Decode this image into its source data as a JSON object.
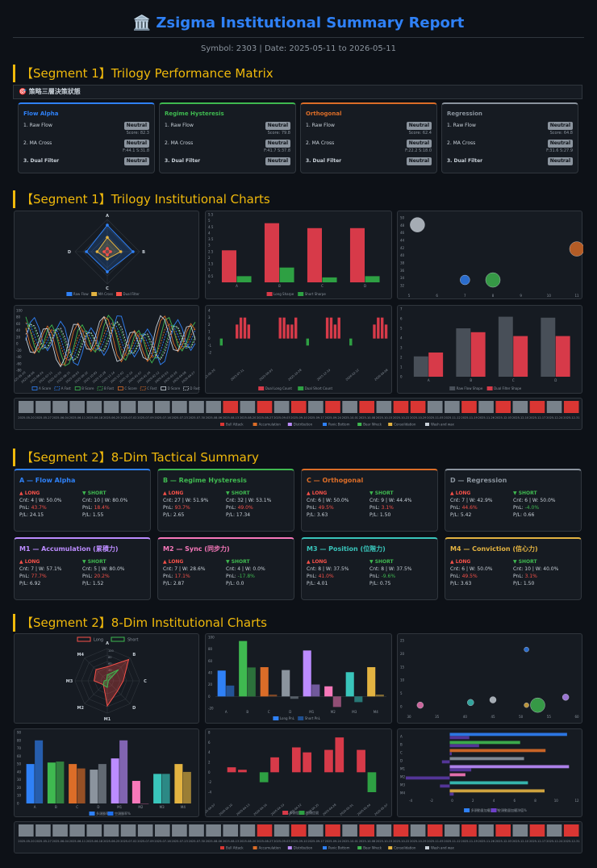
{
  "header": {
    "icon": "🏛️",
    "title": "Zsigma Institutional Summary Report",
    "subtitle": "Symbol: 2303 | Date: 2025-05-11 to 2026-05-11"
  },
  "sections": {
    "s1": "【Segment 1】Trilogy Performance Matrix",
    "s2": "【Segment 1】Trilogy Institutional Charts",
    "s3": "【Segment 2】8-Dim Tactical Summary",
    "s4": "【Segment 2】8-Dim Institutional Charts"
  },
  "matrix_bar": "🎯 策略三層決策狀態",
  "colors": {
    "blue": "#2f81f7",
    "green": "#3fb950",
    "orange": "#db6d28",
    "gray": "#8b949e",
    "red": "#f85149",
    "purple": "#bc8cff",
    "teal": "#39c5bb",
    "yellow": "#e3b341",
    "crimson": "#d73a49"
  },
  "trilogy": [
    {
      "name": "Flow Alpha",
      "color": "#2f81f7",
      "r1": "1. Raw Flow",
      "v1": "Neutral",
      "n1": "Score: 82.3",
      "r2": "2. MA Cross",
      "v2": "Neutral",
      "n2": "F:44.1 S:31.8",
      "r3": "3. Dual Filter",
      "v3": "Neutral"
    },
    {
      "name": "Regime Hysteresis",
      "color": "#3fb950",
      "r1": "1. Raw Flow",
      "v1": "Neutral",
      "n1": "Score: 79.8",
      "r2": "2. MA Cross",
      "v2": "Neutral",
      "n2": "F:41.7 S:37.8",
      "r3": "3. Dual Filter",
      "v3": "Neutral"
    },
    {
      "name": "Orthogonal",
      "color": "#db6d28",
      "r1": "1. Raw Flow",
      "v1": "Neutral",
      "n1": "Score: 62.4",
      "r2": "2. MA Cross",
      "v2": "Neutral",
      "n2": "F:22.2 S:18.0",
      "r3": "3. Dual Filter",
      "v3": "Neutral"
    },
    {
      "name": "Regression",
      "color": "#8b949e",
      "r1": "1. Raw Flow",
      "v1": "Neutral",
      "n1": "Score: 64.8",
      "r2": "2. MA Cross",
      "v2": "Neutral",
      "n2": "F:31.6 S:27.9",
      "r3": "3. Dual Filter",
      "v3": "Neutral"
    }
  ],
  "dims": [
    {
      "name": "A — Flow Alpha",
      "color": "#2f81f7",
      "long_label": "▲ LONG",
      "short_label": "▼ SHORT",
      "l_cnt": "Cnt: 4 | W: 50.0%",
      "l_pnl_label": "PnL:",
      "l_pnl": "43.7%",
      "l_pf": "P/L: 24.15",
      "s_cnt": "Cnt: 10 | W: 80.0%",
      "s_pnl_label": "PnL:",
      "s_pnl": "18.4%",
      "s_pf": "P/L: 1.55",
      "l_neg": false,
      "s_neg": false
    },
    {
      "name": "B — Regime Hysteresis",
      "color": "#3fb950",
      "long_label": "▲ LONG",
      "short_label": "▼ SHORT",
      "l_cnt": "Cnt: 27 | W: 51.9%",
      "l_pnl_label": "PnL:",
      "l_pnl": "93.7%",
      "l_pf": "P/L: 2.65",
      "s_cnt": "Cnt: 32 | W: 53.1%",
      "s_pnl_label": "PnL:",
      "s_pnl": "49.0%",
      "s_pf": "P/L: 17.34",
      "l_neg": false,
      "s_neg": false
    },
    {
      "name": "C — Orthogonal",
      "color": "#db6d28",
      "long_label": "▲ LONG",
      "short_label": "▼ SHORT",
      "l_cnt": "Cnt: 6 | W: 50.0%",
      "l_pnl_label": "PnL:",
      "l_pnl": "49.5%",
      "l_pf": "P/L: 3.63",
      "s_cnt": "Cnt: 9 | W: 44.4%",
      "s_pnl_label": "PnL:",
      "s_pnl": "3.1%",
      "s_pf": "P/L: 1.50",
      "l_neg": false,
      "s_neg": false
    },
    {
      "name": "D — Regression",
      "color": "#8b949e",
      "long_label": "▲ LONG",
      "short_label": "▼ SHORT",
      "l_cnt": "Cnt: 7 | W: 42.9%",
      "l_pnl_label": "PnL:",
      "l_pnl": "44.6%",
      "l_pf": "P/L: 5.42",
      "s_cnt": "Cnt: 6 | W: 50.0%",
      "s_pnl_label": "PnL:",
      "s_pnl": "-4.0%",
      "s_pf": "P/L: 0.66",
      "l_neg": false,
      "s_neg": true
    },
    {
      "name": "M1 — Accumulation (累積力)",
      "color": "#bc8cff",
      "long_label": "▲ LONG",
      "short_label": "▼ SHORT",
      "l_cnt": "Cnt: 7 | W: 57.1%",
      "l_pnl_label": "PnL:",
      "l_pnl": "77.7%",
      "l_pf": "P/L: 6.92",
      "s_cnt": "Cnt: 5 | W: 80.0%",
      "s_pnl_label": "PnL:",
      "s_pnl": "20.2%",
      "s_pf": "P/L: 1.52",
      "l_neg": false,
      "s_neg": false
    },
    {
      "name": "M2 — Sync (同步力)",
      "color": "#f778ba",
      "long_label": "▲ LONG",
      "short_label": "▼ SHORT",
      "l_cnt": "Cnt: 7 | W: 28.6%",
      "l_pnl_label": "PnL:",
      "l_pnl": "17.1%",
      "l_pf": "P/L: 2.87",
      "s_cnt": "Cnt: 4 | W: 0.0%",
      "s_pnl_label": "PnL:",
      "s_pnl": "-17.8%",
      "s_pf": "P/L: 0.0",
      "l_neg": false,
      "s_neg": true
    },
    {
      "name": "M3 — Position (位階力)",
      "color": "#39c5bb",
      "long_label": "▲ LONG",
      "short_label": "▼ SHORT",
      "l_cnt": "Cnt: 8 | W: 37.5%",
      "l_pnl_label": "PnL:",
      "l_pnl": "41.0%",
      "l_pf": "P/L: 4.01",
      "s_cnt": "Cnt: 8 | W: 37.5%",
      "s_pnl_label": "PnL:",
      "s_pnl": "-9.6%",
      "s_pf": "P/L: 0.75",
      "l_neg": false,
      "s_neg": true
    },
    {
      "name": "M4 — Conviction (信心力)",
      "color": "#e3b341",
      "long_label": "▲ LONG",
      "short_label": "▼ SHORT",
      "l_cnt": "Cnt: 6 | W: 50.0%",
      "l_pnl_label": "PnL:",
      "l_pnl": "49.5%",
      "l_pf": "P/L: 3.63",
      "s_cnt": "Cnt: 10 | W: 40.0%",
      "s_pnl_label": "PnL:",
      "s_pnl": "3.1%",
      "s_pf": "P/L: 1.50",
      "l_neg": false,
      "s_neg": false
    }
  ],
  "chart_data": [
    {
      "type": "radar",
      "axes": [
        "A",
        "B",
        "C",
        "D"
      ],
      "series": [
        {
          "name": "Raw Flow",
          "values": [
            82.3,
            79.8,
            62.4,
            64.8
          ],
          "color": "#2f81f7"
        },
        {
          "name": "MA Cross",
          "values": [
            44.1,
            41.7,
            22.2,
            31.6
          ],
          "color": "#e3b341"
        },
        {
          "name": "Dual Filter",
          "values": [
            10,
            10,
            10,
            10
          ],
          "color": "#f85149"
        }
      ]
    },
    {
      "type": "bar",
      "categories": [
        "A",
        "B",
        "C",
        "D"
      ],
      "ylim": [
        0,
        5.5
      ],
      "yticks": [
        "0",
        "0.5",
        "1",
        "1.5",
        "2",
        "2.5",
        "3",
        "3.5",
        "4",
        "4.5",
        "5",
        "5.5"
      ],
      "series": [
        {
          "name": "Long Sharpe",
          "values": [
            2.6,
            4.8,
            4.4,
            4.4
          ],
          "color": "#d73a49"
        },
        {
          "name": "Short Sharpe",
          "values": [
            0.5,
            1.2,
            0.4,
            0.5
          ],
          "color": "#2ea043"
        }
      ]
    },
    {
      "type": "scatter",
      "ylim": [
        30,
        52
      ],
      "yticks": [
        "50",
        "48",
        "46",
        "44",
        "42",
        "40",
        "38",
        "36",
        "34",
        "32"
      ],
      "xticks": [
        "5",
        "6",
        "7",
        "8",
        "9",
        "10",
        "11"
      ],
      "points": [
        {
          "x": 5.3,
          "y": 49.5,
          "r": 9,
          "color": "#c9d1d9"
        },
        {
          "x": 7.0,
          "y": 33.5,
          "r": 6,
          "color": "#2f81f7"
        },
        {
          "x": 8.0,
          "y": 33.5,
          "r": 9,
          "color": "#3fb950"
        },
        {
          "x": 11.0,
          "y": 42.5,
          "r": 9,
          "color": "#db6d28"
        }
      ]
    },
    {
      "type": "line",
      "ylim": [
        -80,
        100
      ],
      "yticks": [
        "100",
        "80",
        "60",
        "40",
        "20",
        "0",
        "-20",
        "-40",
        "-60",
        "-80"
      ],
      "series": [
        {
          "name": "A Score",
          "color": "#2f81f7",
          "dashed": false
        },
        {
          "name": "A Fast",
          "color": "#2f81f7",
          "dashed": true
        },
        {
          "name": "B Score",
          "color": "#3fb950",
          "dashed": false
        },
        {
          "name": "B Fast",
          "color": "#3fb950",
          "dashed": true
        },
        {
          "name": "C Score",
          "color": "#db6d28",
          "dashed": false
        },
        {
          "name": "C Fast",
          "color": "#db6d28",
          "dashed": true
        },
        {
          "name": "D Score",
          "color": "#c9d1d9",
          "dashed": false
        },
        {
          "name": "D Fast",
          "color": "#c9d1d9",
          "dashed": true
        }
      ]
    },
    {
      "type": "bar",
      "ylim": [
        -2,
        4
      ],
      "yticks": [
        "4",
        "3",
        "2",
        "1",
        "0",
        "-1",
        "-2"
      ],
      "series": [
        {
          "name": "Dual Long Count",
          "values": [
            0,
            0,
            0,
            0,
            0,
            2,
            3,
            3,
            2,
            0,
            0,
            0,
            0,
            0,
            0,
            0,
            3,
            3,
            2,
            2,
            3,
            0,
            0,
            0,
            0,
            0,
            0,
            0,
            3,
            3,
            2,
            3,
            0,
            0,
            0,
            0,
            0,
            0,
            0,
            0,
            2,
            3,
            3,
            2
          ],
          "color": "#d73a49"
        },
        {
          "name": "Dual Short Count",
          "values": [
            0,
            -1,
            0,
            0,
            0,
            0,
            0,
            0,
            0,
            0,
            0,
            0,
            0,
            0,
            0,
            0,
            0,
            0,
            0,
            0,
            0,
            0,
            0,
            -1,
            0,
            0,
            0,
            0,
            0,
            0,
            0,
            0,
            0,
            0,
            -1,
            0,
            0,
            0,
            0,
            0,
            0,
            0,
            0,
            0
          ],
          "color": "#2ea043"
        }
      ]
    },
    {
      "type": "bar",
      "categories": [
        "A",
        "B",
        "C",
        "D"
      ],
      "ylim": [
        0,
        7
      ],
      "yticks": [
        "7",
        "6",
        "5",
        "4",
        "3",
        "2",
        "1",
        "0"
      ],
      "series": [
        {
          "name": "Raw Flow Shape",
          "values": [
            2.1,
            5.0,
            6.2,
            6.1
          ],
          "color": "#484f58"
        },
        {
          "name": "Dual Filter Shape",
          "values": [
            2.5,
            4.6,
            4.2,
            4.2
          ],
          "color": "#d73a49"
        }
      ]
    },
    {
      "type": "bar",
      "categories": [
        "A",
        "B",
        "C",
        "D",
        "M1",
        "M2",
        "M3",
        "M4"
      ],
      "ylim": [
        -20,
        100
      ],
      "yticks": [
        "100",
        "80",
        "60",
        "40",
        "20",
        "0",
        "-20"
      ],
      "series": [
        {
          "name": "Long PnL",
          "values": [
            43.7,
            93.7,
            49.5,
            44.6,
            77.7,
            17.1,
            41.0,
            49.5
          ]
        },
        {
          "name": "Short PnL",
          "values": [
            18.4,
            49.0,
            3.1,
            -4.0,
            20.2,
            -17.8,
            -9.6,
            3.1
          ]
        }
      ]
    },
    {
      "type": "scatter",
      "ylim": [
        0,
        28
      ],
      "yticks": [
        "25",
        "20",
        "15",
        "10",
        "5",
        "0"
      ],
      "xticks": [
        "30",
        "35",
        "40",
        "45",
        "50",
        "55",
        "60"
      ],
      "points": [
        {
          "x": 32,
          "y": 3,
          "r": 4,
          "color": "#f778ba"
        },
        {
          "x": 41,
          "y": 4,
          "r": 4,
          "color": "#39c5bb"
        },
        {
          "x": 45,
          "y": 5,
          "r": 4,
          "color": "#c9d1d9"
        },
        {
          "x": 51,
          "y": 24,
          "r": 3,
          "color": "#2f81f7"
        },
        {
          "x": 53,
          "y": 3,
          "r": 9,
          "color": "#3fb950"
        },
        {
          "x": 58,
          "y": 6,
          "r": 4,
          "color": "#bc8cff"
        },
        {
          "x": 51,
          "y": 3,
          "r": 3,
          "color": "#e3b341"
        }
      ]
    },
    {
      "type": "bar",
      "categories": [
        "A",
        "B",
        "C",
        "D",
        "M1",
        "M2",
        "M3",
        "M4"
      ],
      "ylim": [
        0,
        90
      ],
      "yticks": [
        "90",
        "80",
        "70",
        "60",
        "50",
        "40",
        "30",
        "20",
        "10",
        "0"
      ],
      "series": [
        {
          "name": "多頭勝率%",
          "values": [
            50.0,
            51.9,
            50.0,
            42.9,
            57.1,
            28.6,
            37.5,
            50.0
          ]
        },
        {
          "name": "空頭勝率%",
          "values": [
            80.0,
            53.1,
            44.4,
            50.0,
            80.0,
            0.0,
            37.5,
            40.0
          ]
        }
      ]
    },
    {
      "type": "bar",
      "ylim": [
        -4,
        8
      ],
      "yticks": [
        "8",
        "6",
        "4",
        "2",
        "0",
        "-2",
        "-4"
      ],
      "series": [
        {
          "name": "多頭信號",
          "values": [
            0,
            1,
            0.5,
            0,
            0,
            3,
            0,
            5,
            4,
            0,
            4.5,
            7,
            0,
            4.5,
            0,
            0
          ],
          "color": "#d73a49"
        },
        {
          "name": "空頭信號",
          "values": [
            0,
            0,
            0,
            0,
            -2,
            0,
            0,
            0,
            0,
            0,
            0,
            0,
            0,
            0,
            -4,
            0
          ],
          "color": "#2ea043"
        }
      ]
    },
    {
      "type": "barh",
      "categories": [
        "A",
        "B",
        "C",
        "D",
        "M1",
        "M2",
        "M3",
        "M4"
      ],
      "xlim": [
        -4,
        13
      ],
      "xticks": [
        "-4",
        "-2",
        "0",
        "2",
        "4",
        "6",
        "8",
        "10",
        "12"
      ],
      "series": [
        {
          "name": "多頭動量加權淨值%",
          "values": [
            12.0,
            7.2,
            9.8,
            7.6,
            12.2,
            1.6,
            8.0,
            9.7
          ]
        },
        {
          "name": "空頭動量加權淨值%",
          "values": [
            2.0,
            3.0,
            0.2,
            -0.8,
            2.2,
            -4.5,
            -1.0,
            0.4
          ]
        }
      ]
    }
  ],
  "radar1": {
    "labels": [
      "A",
      "B",
      "C",
      "D"
    ]
  },
  "radar2": {
    "labels": [
      "A",
      "B",
      "C",
      "D",
      "M1",
      "M2",
      "M3",
      "M4"
    ],
    "legend_long": "Long",
    "legend_short": "Short",
    "long_values": [
      43.7,
      93.7,
      49.5,
      44.6,
      77.7,
      17.1,
      41.0,
      49.5
    ],
    "short_values": [
      18.4,
      49.0,
      3.1,
      4.0,
      20.2,
      17.8,
      9.6,
      3.1
    ],
    "rticks": [
      "100",
      "80",
      "60",
      "40",
      "20"
    ]
  },
  "heat_legend_1": [
    "Bull Attack",
    "Accumulation",
    "Distribution",
    "Panic Bottom",
    "Bear Wreck",
    "Consolidation",
    "Wash and wax"
  ],
  "heat_legend_2": [
    "Bull Attack",
    "Accumulation",
    "Distribution",
    "Panic Bottom",
    "Bear Wreck",
    "Consolidation",
    "Wash and wax"
  ],
  "heat_dates": [
    "2025-05-20",
    "2025-05-27",
    "2025-06-04",
    "2025-06-11",
    "2025-06-18",
    "2025-06-25",
    "2025-07-02",
    "2025-07-09",
    "2025-07-16",
    "2025-07-23",
    "2025-07-30",
    "2025-08-06",
    "2025-08-13",
    "2025-08-20",
    "2025-08-27",
    "2025-09-03",
    "2025-09-10",
    "2025-09-17",
    "2025-09-24",
    "2025-10-01",
    "2025-10-08",
    "2025-10-15",
    "2025-10-22",
    "2025-10-29",
    "2025-11-05",
    "2025-11-12",
    "2025-11-19",
    "2025-11-26",
    "2025-12-03",
    "2025-12-10",
    "2025-12-17",
    "2025-12-24",
    "2025-12-31"
  ],
  "heat_states_1": [
    "g",
    "g",
    "g",
    "g",
    "g",
    "g",
    "g",
    "g",
    "g",
    "g",
    "g",
    "g",
    "r",
    "g",
    "r",
    "g",
    "r",
    "g",
    "r",
    "g",
    "r",
    "g",
    "r",
    "r",
    "g",
    "g",
    "r",
    "g",
    "r",
    "g",
    "r",
    "g",
    "r"
  ],
  "heat_states_2": [
    "g",
    "g",
    "g",
    "g",
    "g",
    "g",
    "g",
    "g",
    "g",
    "g",
    "g",
    "g",
    "g",
    "g",
    "r",
    "g",
    "r",
    "g",
    "r",
    "g",
    "r",
    "g",
    "r",
    "g",
    "r",
    "g",
    "r",
    "g",
    "r",
    "g",
    "r",
    "g",
    "r"
  ],
  "line_dates": [
    "2025-05-20",
    "2025-06-06",
    "2025-06-24",
    "2025-07-11",
    "2025-07-29",
    "2025-08-15",
    "2025-09-03",
    "2025-09-22",
    "2025-10-09",
    "2025-10-28",
    "2025-11-14",
    "2025-12-02",
    "2025-12-19",
    "2026-01-07",
    "2026-01-26",
    "2026-02-12",
    "2026-03-03",
    "2026-03-20",
    "2026-04-08",
    "2026-04-27"
  ],
  "bar2_dates": [
    "2025-05-20",
    "2025-07-11",
    "2025-09-03",
    "2025-10-28",
    "2025-12-19",
    "2026-02-12",
    "2026-04-08"
  ],
  "bar3_dates": [
    "2026-04-07",
    "2026-04-10",
    "2026-04-13",
    "2026-04-16",
    "2026-04-19",
    "2026-04-22",
    "2026-04-25",
    "2026-04-28",
    "2026-05-01",
    "2026-05-04",
    "2026-05-07"
  ]
}
